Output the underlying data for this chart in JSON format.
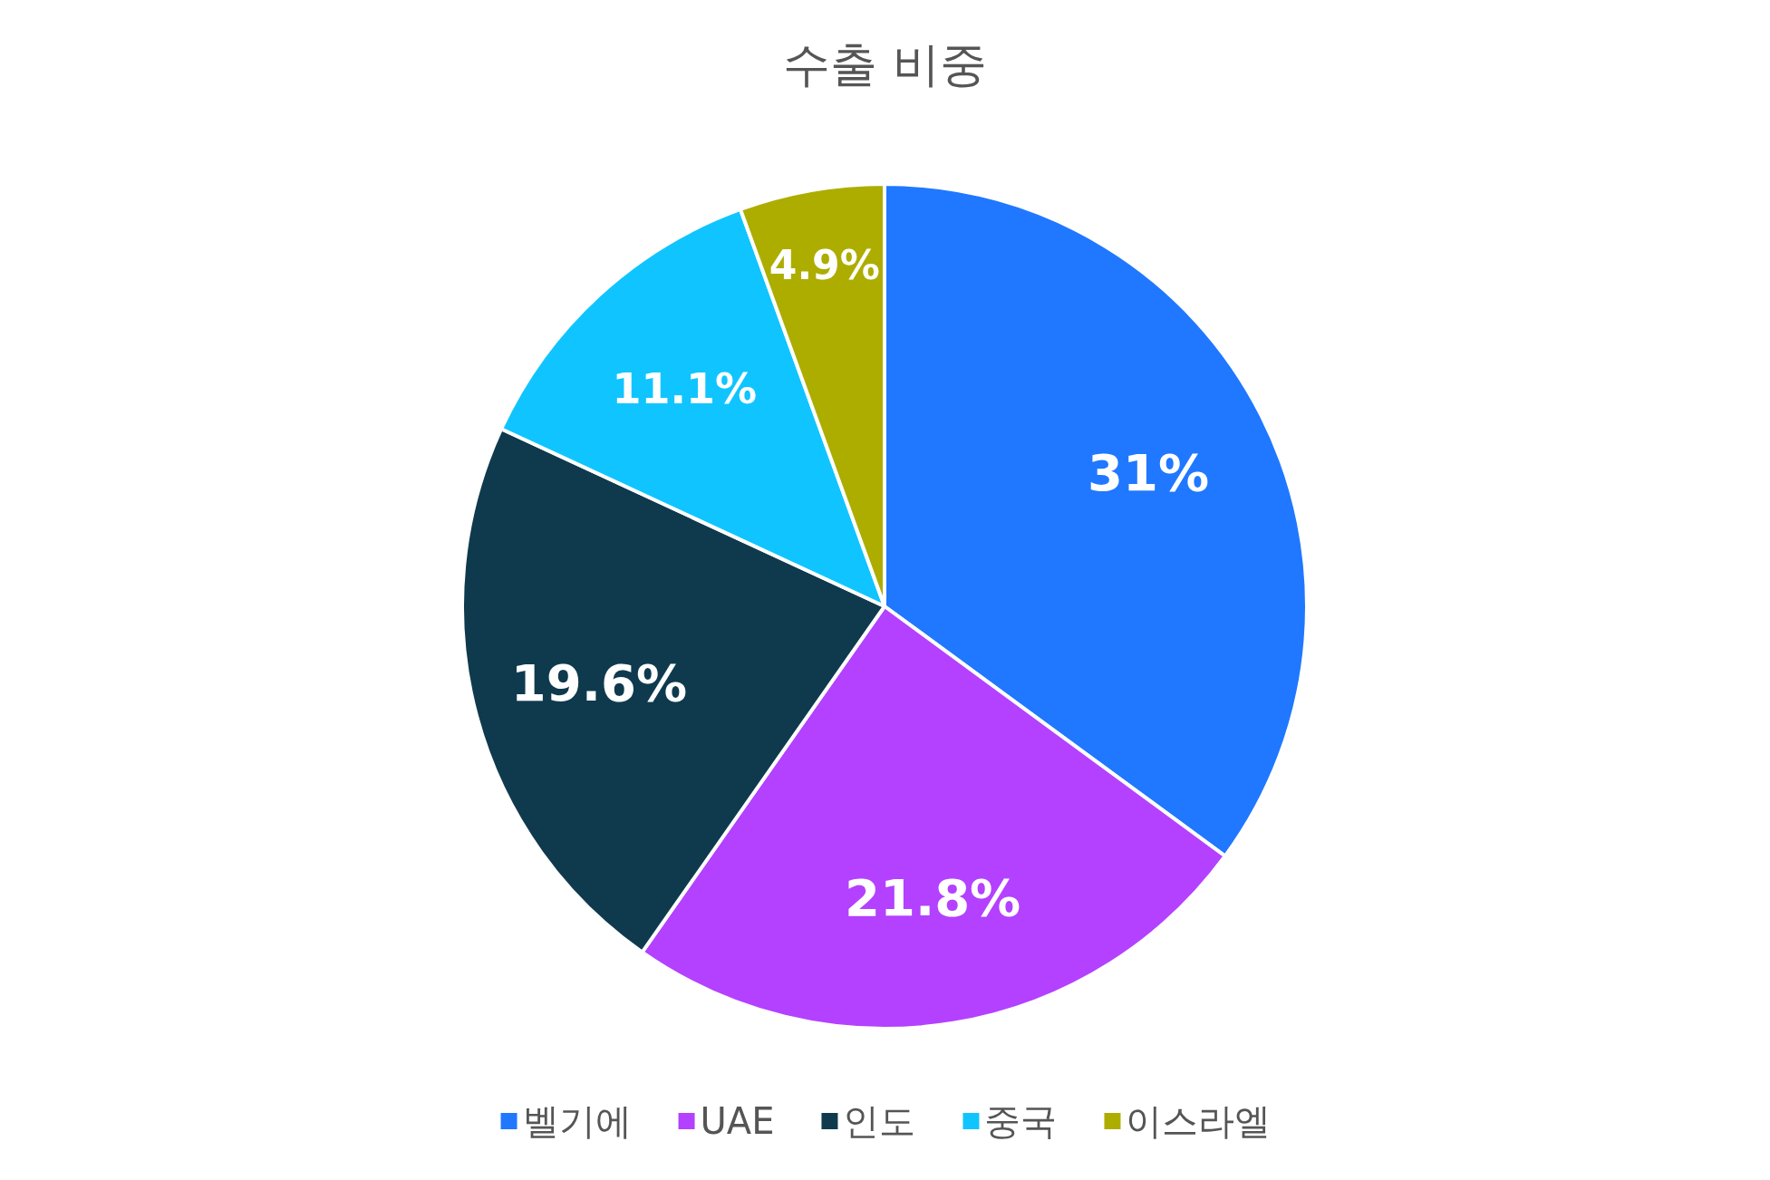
{
  "chart_data": {
    "type": "pie",
    "title": "수출 비중",
    "categories": [
      "벨기에",
      "UAE",
      "인도",
      "중국",
      "이스라엘"
    ],
    "values": [
      31,
      21.8,
      19.6,
      11.1,
      4.9
    ],
    "colors": [
      "#1f78ff",
      "#b341ff",
      "#0f3a4e",
      "#10c5ff",
      "#adad00"
    ],
    "value_labels": [
      "31%",
      "21.8%",
      "19.6%",
      "11.1%",
      "4.9%"
    ],
    "legend": "bottom"
  }
}
